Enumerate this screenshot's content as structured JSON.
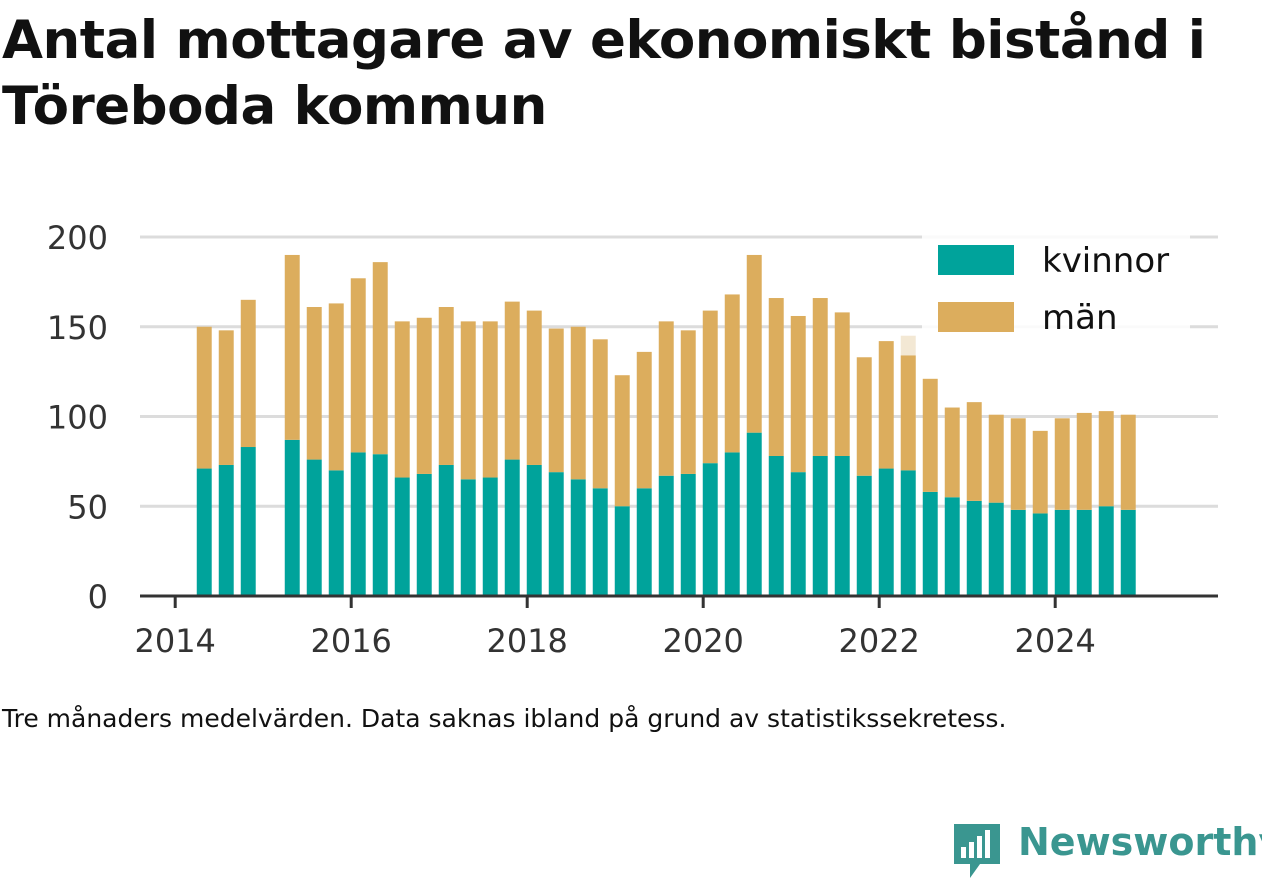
{
  "title": "Antal mottagare av ekonomiskt bistånd i Töreboda kommun",
  "caption": "Tre månaders medelvärden. Data saknas ibland på grund av statistikssekretess.",
  "brand": {
    "name": "Newsworthy",
    "icon": "newsworthy-logo-icon",
    "color": "#3a9690"
  },
  "colors": {
    "kvinnor": "#00a39b",
    "man": "#dcad5d",
    "grid": "#dcdcdc",
    "axis": "#333333",
    "text": "#333333"
  },
  "chart_data": {
    "type": "bar",
    "stacked": true,
    "x_is_time": true,
    "legend_position": "top-right",
    "grid": true,
    "ylim": [
      0,
      200
    ],
    "yticks": [
      0,
      50,
      100,
      150,
      200
    ],
    "xlim": [
      2013.6,
      2025.85
    ],
    "xticks": [
      2014,
      2016,
      2018,
      2020,
      2022,
      2024
    ],
    "xtick_labels": [
      "2014",
      "2016",
      "2018",
      "2020",
      "2022",
      "2024"
    ],
    "series": [
      {
        "name": "kvinnor",
        "color": "#00a39b"
      },
      {
        "name": "män",
        "color": "#dcad5d"
      }
    ],
    "x": [
      2014.33,
      2014.58,
      2014.83,
      2015.33,
      2015.58,
      2015.83,
      2016.08,
      2016.33,
      2016.58,
      2016.83,
      2017.08,
      2017.33,
      2017.58,
      2017.83,
      2018.08,
      2018.33,
      2018.58,
      2018.83,
      2019.08,
      2019.33,
      2019.58,
      2019.83,
      2020.08,
      2020.33,
      2020.58,
      2020.83,
      2021.08,
      2021.33,
      2021.58,
      2021.83,
      2022.08,
      2022.33,
      2022.58,
      2022.83,
      2023.08,
      2023.33,
      2023.58,
      2023.83,
      2024.08,
      2024.33,
      2024.58,
      2024.83
    ],
    "kvinnor": [
      71,
      73,
      83,
      87,
      76,
      70,
      80,
      79,
      66,
      68,
      73,
      65,
      66,
      76,
      73,
      69,
      65,
      60,
      50,
      60,
      67,
      68,
      74,
      80,
      91,
      78,
      69,
      78,
      78,
      67,
      71,
      70,
      58,
      55,
      53,
      52,
      48,
      46,
      48,
      48,
      50,
      48
    ],
    "man": [
      79,
      75,
      82,
      103,
      85,
      93,
      97,
      107,
      87,
      87,
      88,
      88,
      87,
      88,
      86,
      80,
      85,
      83,
      73,
      76,
      86,
      80,
      85,
      88,
      99,
      88,
      87,
      88,
      80,
      66,
      71,
      64,
      63,
      50,
      55,
      49,
      51,
      46,
      51,
      54,
      53,
      53
    ],
    "highlight": {
      "x": 2022.33,
      "value_hint": 145,
      "color": "#f3e8d4"
    }
  }
}
